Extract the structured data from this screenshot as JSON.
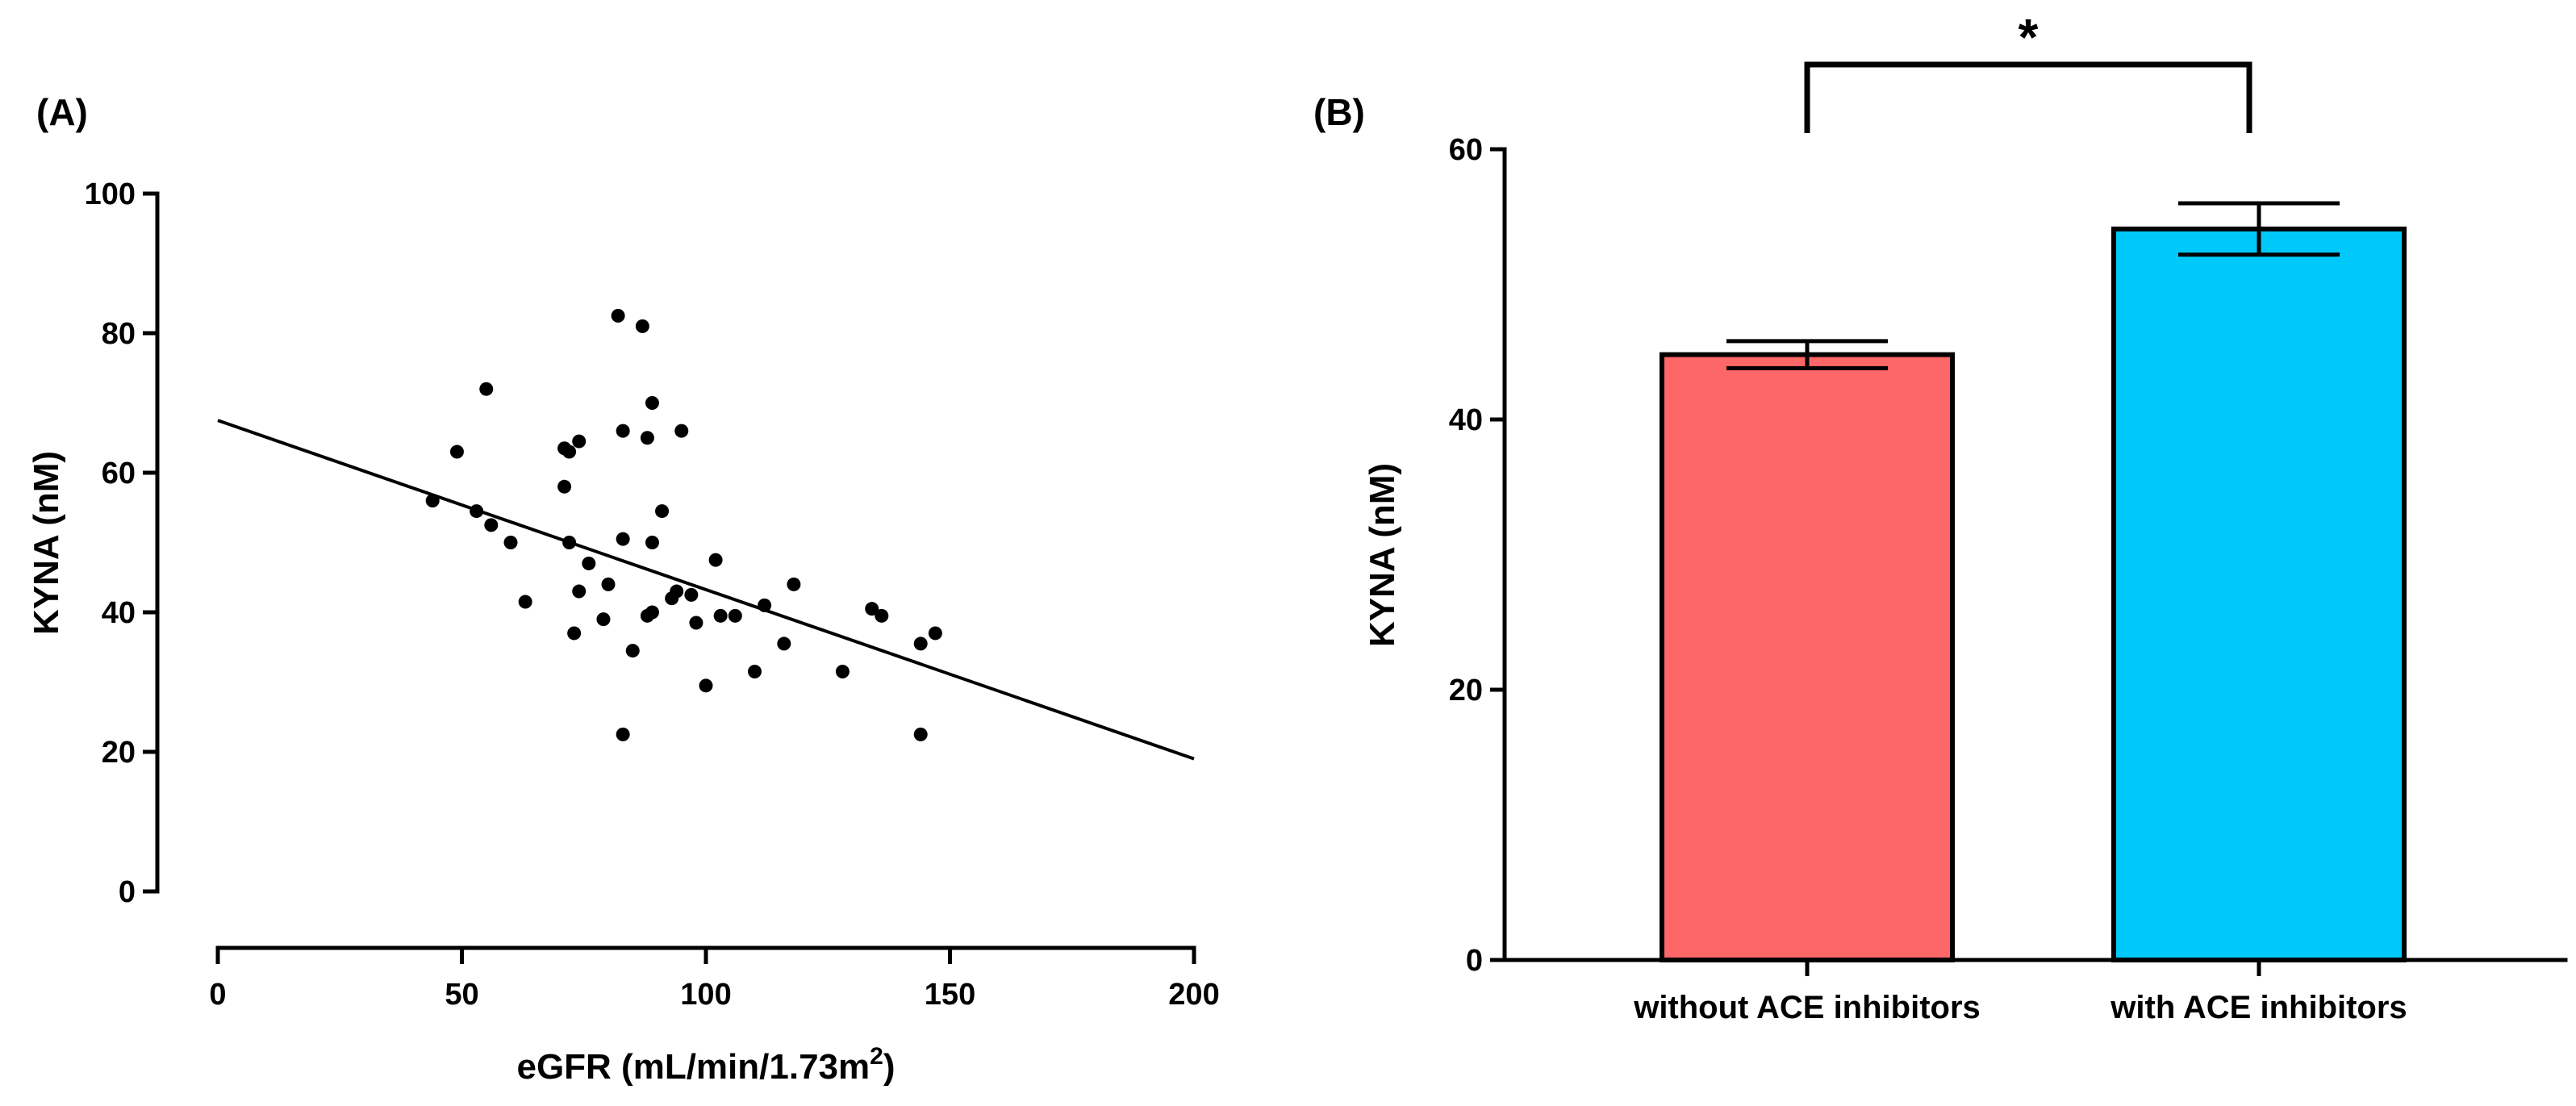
{
  "chart_data": [
    {
      "type": "scatter",
      "panel_label": "(A)",
      "xlabel_main": "eGFR (mL/min/1.73m",
      "xlabel_sup": "2",
      "xlabel_close": ")",
      "ylabel": "KYNA (nM)",
      "xlim": [
        0,
        200
      ],
      "ylim": [
        0,
        100
      ],
      "xticks": [
        0,
        50,
        100,
        150,
        200
      ],
      "yticks": [
        0,
        20,
        40,
        60,
        80,
        100
      ],
      "regression": {
        "x": [
          0,
          200
        ],
        "y": [
          67.5,
          19
        ]
      },
      "points": [
        [
          44,
          56
        ],
        [
          49,
          63
        ],
        [
          53,
          54.5
        ],
        [
          55,
          72
        ],
        [
          56,
          52.5
        ],
        [
          60,
          50
        ],
        [
          63,
          41.5
        ],
        [
          71,
          58
        ],
        [
          71,
          63.5
        ],
        [
          72,
          63
        ],
        [
          72,
          50
        ],
        [
          73,
          37
        ],
        [
          74,
          43
        ],
        [
          74,
          64.5
        ],
        [
          76,
          47
        ],
        [
          79,
          39
        ],
        [
          80,
          44
        ],
        [
          82,
          82.5
        ],
        [
          83,
          66
        ],
        [
          83,
          50.5
        ],
        [
          83,
          22.5
        ],
        [
          85,
          34.5
        ],
        [
          87,
          81
        ],
        [
          88,
          39.5
        ],
        [
          88,
          65
        ],
        [
          89,
          40
        ],
        [
          89,
          50
        ],
        [
          89,
          70
        ],
        [
          91,
          54.5
        ],
        [
          93,
          42
        ],
        [
          94,
          43
        ],
        [
          95,
          66
        ],
        [
          97,
          42.5
        ],
        [
          98,
          38.5
        ],
        [
          100,
          29.5
        ],
        [
          102,
          47.5
        ],
        [
          103,
          39.5
        ],
        [
          106,
          39.5
        ],
        [
          110,
          31.5
        ],
        [
          112,
          41
        ],
        [
          116,
          35.5
        ],
        [
          118,
          44
        ],
        [
          128,
          31.5
        ],
        [
          134,
          40.5
        ],
        [
          136,
          39.5
        ],
        [
          144,
          35.5
        ],
        [
          144,
          22.5
        ],
        [
          147,
          37
        ]
      ]
    },
    {
      "type": "bar",
      "panel_label": "(B)",
      "ylabel": "KYNA (nM)",
      "ylim": [
        0,
        60
      ],
      "yticks": [
        0,
        20,
        40,
        60
      ],
      "categories": [
        "without ACE inhibitors",
        "with ACE inhibitors"
      ],
      "values": [
        44.8,
        54.1
      ],
      "errors": [
        1.0,
        1.9
      ],
      "colors": [
        "#fe6767",
        "#00c9fa"
      ],
      "significance": "*"
    }
  ]
}
